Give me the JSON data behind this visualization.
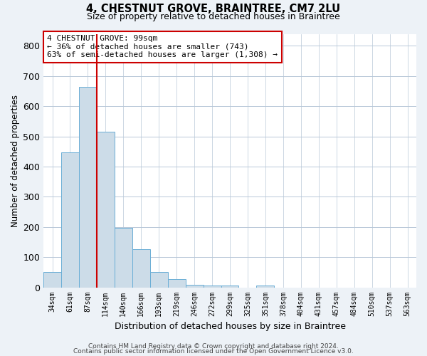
{
  "title1": "4, CHESTNUT GROVE, BRAINTREE, CM7 2LU",
  "title2": "Size of property relative to detached houses in Braintree",
  "xlabel": "Distribution of detached houses by size in Braintree",
  "ylabel": "Number of detached properties",
  "bar_labels": [
    "34sqm",
    "61sqm",
    "87sqm",
    "114sqm",
    "140sqm",
    "166sqm",
    "193sqm",
    "219sqm",
    "246sqm",
    "272sqm",
    "299sqm",
    "325sqm",
    "351sqm",
    "378sqm",
    "404sqm",
    "431sqm",
    "457sqm",
    "484sqm",
    "510sqm",
    "537sqm",
    "563sqm"
  ],
  "bar_values": [
    50,
    447,
    665,
    515,
    197,
    126,
    50,
    27,
    8,
    7,
    7,
    0,
    7,
    0,
    0,
    0,
    0,
    0,
    0,
    0,
    0
  ],
  "bar_color": "#ccdce8",
  "bar_edgecolor": "#6aaed6",
  "vline_color": "#cc0000",
  "annotation_text": "4 CHESTNUT GROVE: 99sqm\n← 36% of detached houses are smaller (743)\n63% of semi-detached houses are larger (1,308) →",
  "annotation_box_edgecolor": "#cc0000",
  "ylim": [
    0,
    840
  ],
  "yticks": [
    0,
    100,
    200,
    300,
    400,
    500,
    600,
    700,
    800
  ],
  "footer1": "Contains HM Land Registry data © Crown copyright and database right 2024.",
  "footer2": "Contains public sector information licensed under the Open Government Licence v3.0.",
  "bg_color": "#edf2f7",
  "plot_bg_color": "#ffffff",
  "grid_color": "#b8c8d8",
  "title1_fontsize": 10.5,
  "title2_fontsize": 9,
  "ylabel_fontsize": 8.5,
  "xlabel_fontsize": 9,
  "tick_fontsize": 7,
  "annotation_fontsize": 8,
  "footer_fontsize": 6.5
}
